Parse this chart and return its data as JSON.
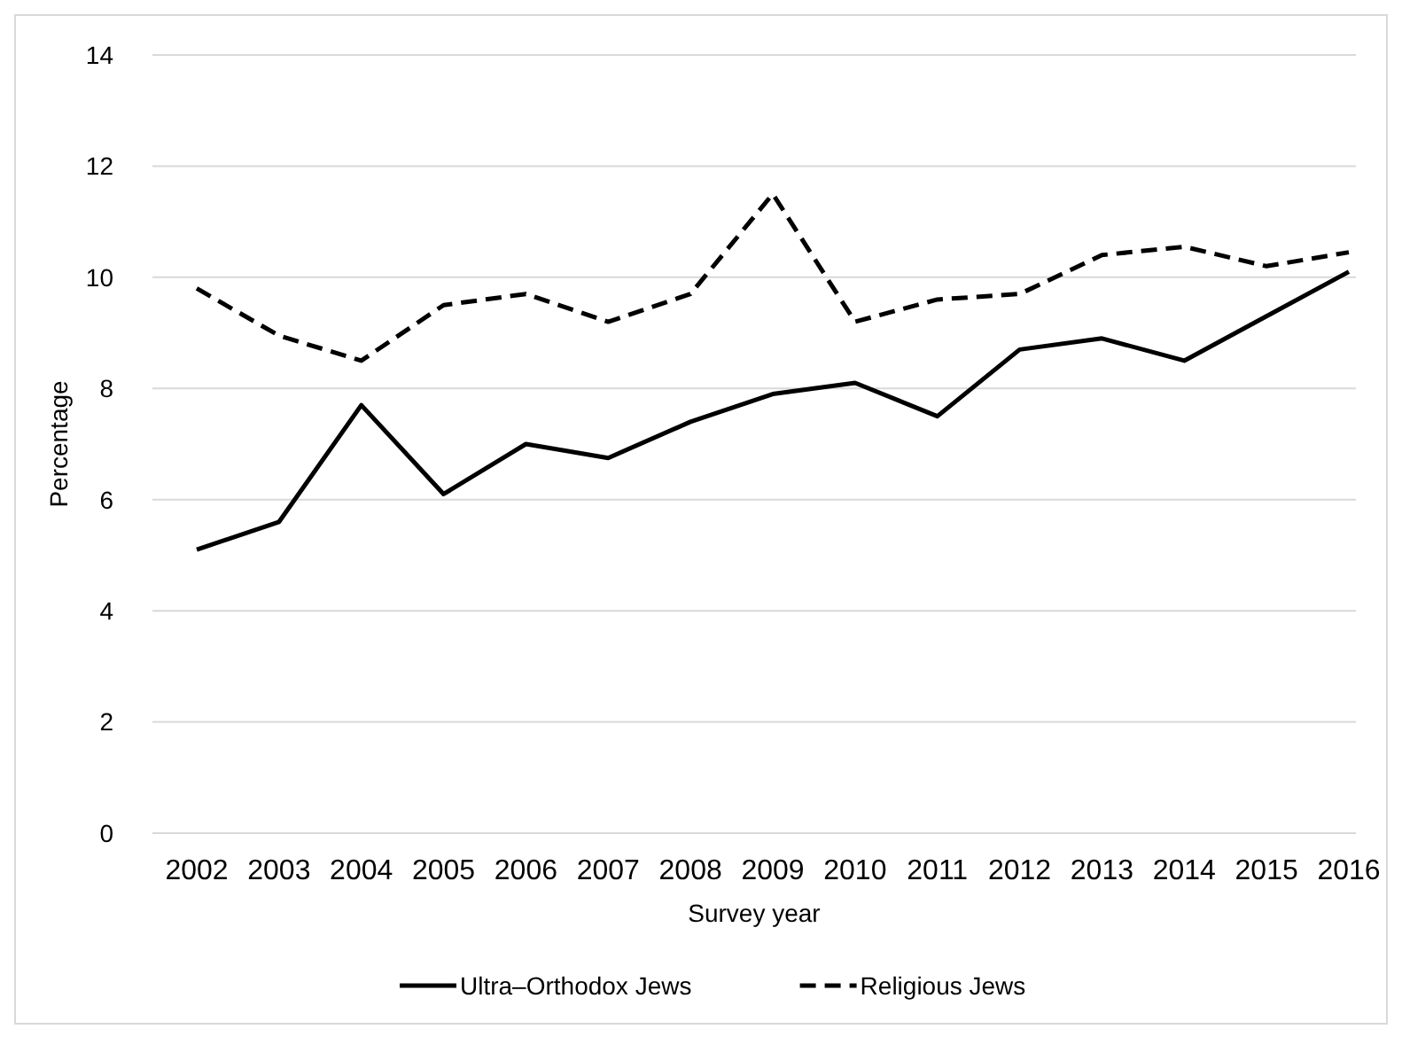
{
  "chart_data": {
    "type": "line",
    "xlabel": "Survey year",
    "ylabel": "Percentage",
    "categories": [
      "2002",
      "2003",
      "2004",
      "2005",
      "2006",
      "2007",
      "2008",
      "2009",
      "2010",
      "2011",
      "2012",
      "2013",
      "2014",
      "2015",
      "2016"
    ],
    "series": [
      {
        "name": "Ultra–Orthodox Jews",
        "color": "#000000",
        "line_style": "solid",
        "values": [
          5.1,
          5.6,
          7.7,
          6.1,
          7.0,
          6.75,
          7.4,
          7.9,
          8.1,
          7.5,
          8.7,
          8.9,
          8.5,
          9.3,
          10.1
        ]
      },
      {
        "name": "Religious Jews",
        "color": "#000000",
        "line_style": "dashed",
        "values": [
          9.8,
          8.95,
          8.5,
          9.5,
          9.7,
          9.2,
          9.7,
          11.5,
          9.2,
          9.6,
          9.7,
          10.4,
          10.55,
          10.2,
          10.45
        ]
      }
    ],
    "ylim": [
      0,
      14
    ],
    "yticks": [
      0,
      2,
      4,
      6,
      8,
      10,
      12,
      14
    ],
    "grid": "y",
    "legend": "bottom",
    "marker": "none"
  }
}
